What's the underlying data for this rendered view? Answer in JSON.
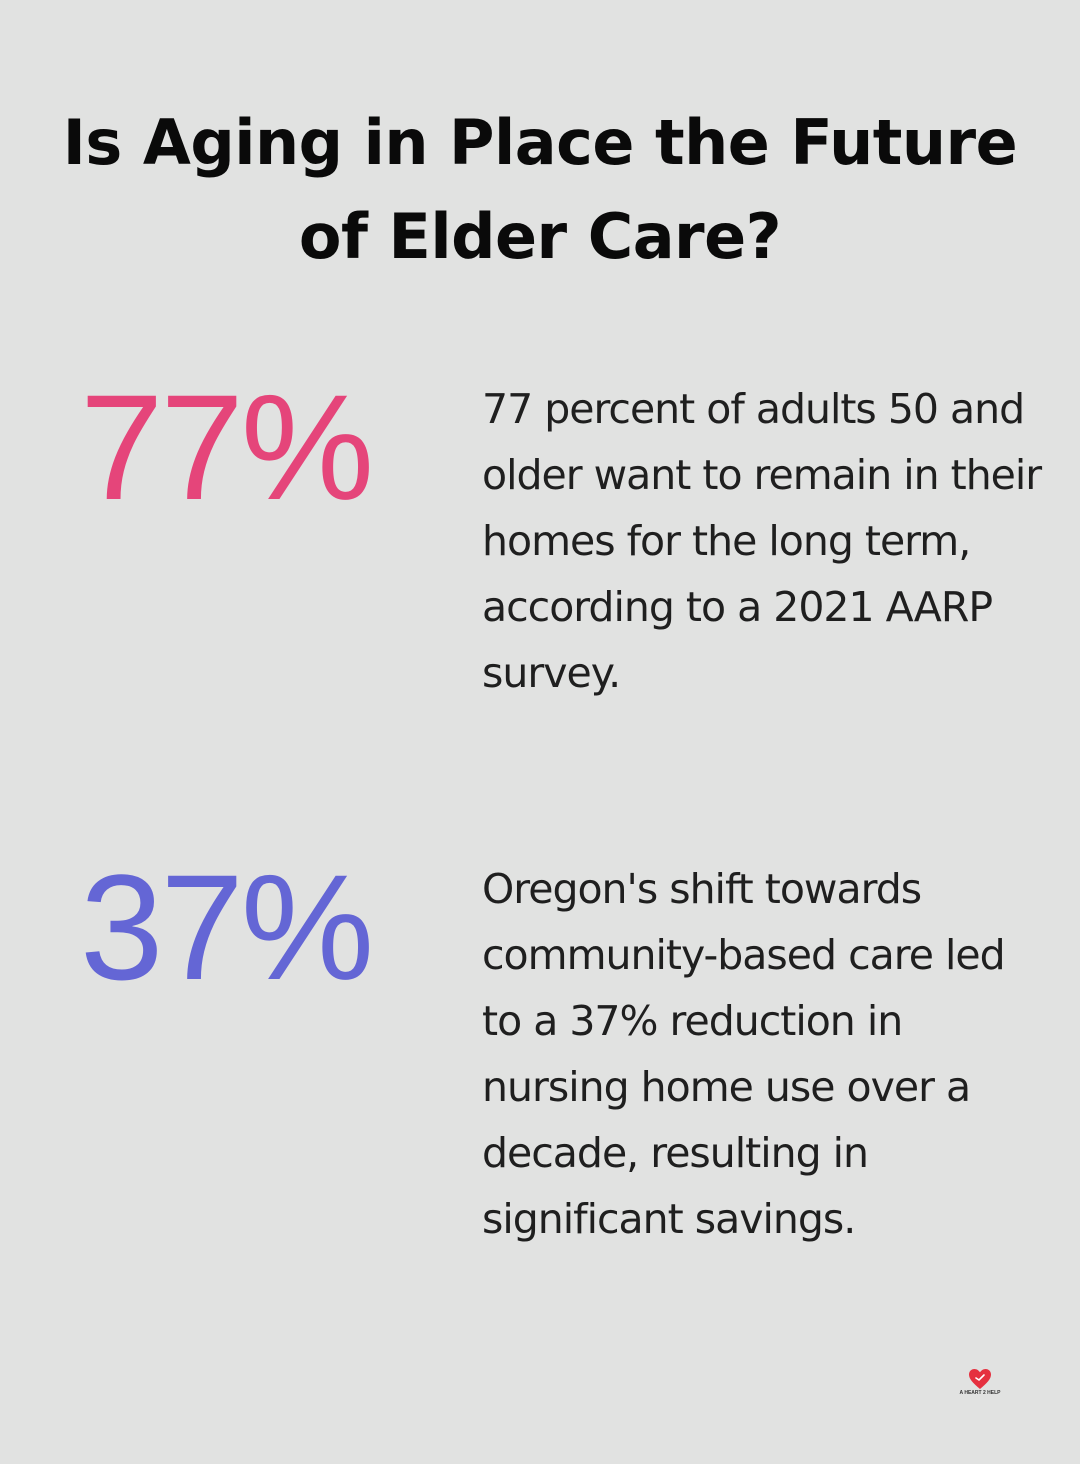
{
  "title": "Is Aging in Place the Future of Elder Care?",
  "stats": [
    {
      "value": "77%",
      "color": "#e5457a",
      "description": "77 percent of adults 50 and older want to remain in their homes for the long term, according to a 2021 AARP survey."
    },
    {
      "value": "37%",
      "color": "#6466d5",
      "description": "Oregon's shift towards community-based care led to a 37% reduction in nursing home use over a decade, resulting in significant savings."
    }
  ],
  "logo": {
    "icon": "heart-icon",
    "text": "A HEART 2 HELP",
    "color": "#e5303f"
  }
}
